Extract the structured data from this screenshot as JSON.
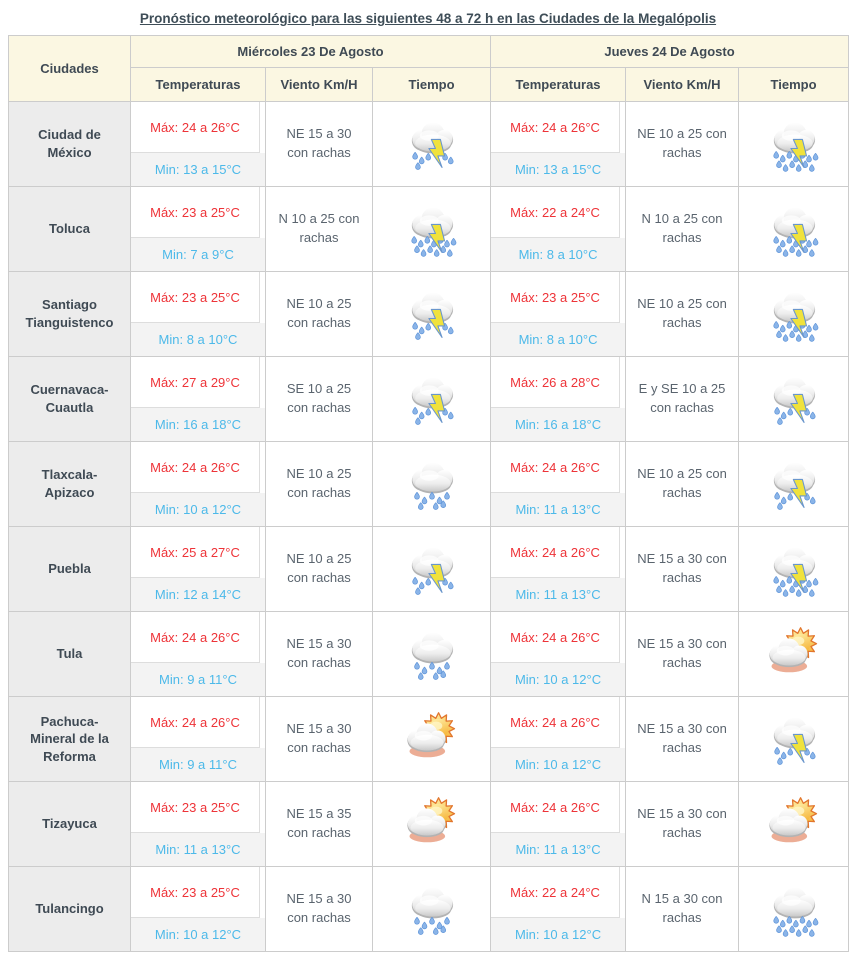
{
  "title": "Pronóstico meteorológico para las siguientes 48 a 72 h en las Ciudades de la Megalópolis",
  "colors": {
    "title": "#3e4d57",
    "dark_text": "#3f4a54",
    "header_bg": "#fbf7e2",
    "city_bg": "#ececec",
    "border": "#cccccc",
    "max_temp": "#ee3338",
    "min_temp": "#4cb9e9",
    "wind_text": "#5a646e",
    "sun_orange": "#e2762d",
    "bolt_yellow": "#f0e23c",
    "rain_blue": "#5d93d8"
  },
  "table": {
    "city_header": "Ciudades",
    "days": [
      {
        "label": "Miércoles 23 De Agosto",
        "cols": [
          "Temperaturas",
          "Viento Km/H",
          "Tiempo"
        ]
      },
      {
        "label": "Jueves 24 De Agosto",
        "cols": [
          "Temperaturas",
          "Viento Km/H",
          "Tiempo"
        ]
      }
    ],
    "rows": [
      {
        "city": "Ciudad de México",
        "wed": {
          "max": "Máx: 24 a 26°C",
          "min": "Min: 13 a 15°C",
          "wind": "NE 15 a 30 con rachas",
          "icon": "storm"
        },
        "thu": {
          "max": "Máx: 24 a 26°C",
          "min": "Min: 13 a 15°C",
          "wind": "NE 10 a 25 con rachas",
          "icon": "storm-heavy"
        }
      },
      {
        "city": "Toluca",
        "wed": {
          "max": "Máx: 23 a 25°C",
          "min": "Min: 7 a 9°C",
          "wind": "N 10 a 25 con rachas",
          "icon": "storm-heavy"
        },
        "thu": {
          "max": "Máx: 22 a 24°C",
          "min": "Min: 8 a 10°C",
          "wind": "N 10 a 25 con rachas",
          "icon": "storm-heavy"
        }
      },
      {
        "city": "Santiago Tianguistenco",
        "wed": {
          "max": "Máx: 23 a 25°C",
          "min": "Min: 8 a 10°C",
          "wind": "NE 10 a 25 con rachas",
          "icon": "storm"
        },
        "thu": {
          "max": "Máx: 23 a 25°C",
          "min": "Min: 8 a 10°C",
          "wind": "NE 10 a 25 con rachas",
          "icon": "storm-heavy"
        }
      },
      {
        "city": "Cuernavaca-Cuautla",
        "wed": {
          "max": "Máx: 27 a 29°C",
          "min": "Min: 16 a 18°C",
          "wind": "SE 10 a 25 con rachas",
          "icon": "storm"
        },
        "thu": {
          "max": "Máx: 26 a 28°C",
          "min": "Min: 16 a 18°C",
          "wind": "E y SE 10 a 25 con rachas",
          "icon": "storm"
        }
      },
      {
        "city": "Tlaxcala-Apizaco",
        "wed": {
          "max": "Máx: 24 a 26°C",
          "min": "Min: 10 a 12°C",
          "wind": "NE 10 a 25 con rachas",
          "icon": "rain"
        },
        "thu": {
          "max": "Máx: 24 a 26°C",
          "min": "Min: 11 a 13°C",
          "wind": "NE 10 a 25 con rachas",
          "icon": "storm"
        }
      },
      {
        "city": "Puebla",
        "wed": {
          "max": "Máx: 25 a 27°C",
          "min": "Min: 12 a 14°C",
          "wind": "NE 10 a 25 con rachas",
          "icon": "storm"
        },
        "thu": {
          "max": "Máx: 24 a 26°C",
          "min": "Min: 11 a 13°C",
          "wind": "NE 15 a 30 con rachas",
          "icon": "storm-heavy"
        }
      },
      {
        "city": "Tula",
        "wed": {
          "max": "Máx: 24 a 26°C",
          "min": "Min: 9 a 11°C",
          "wind": "NE 15 a 30 con rachas",
          "icon": "rain"
        },
        "thu": {
          "max": "Máx: 24 a 26°C",
          "min": "Min: 10 a 12°C",
          "wind": "NE 15 a 30 con rachas",
          "icon": "sun-cloud"
        }
      },
      {
        "city": "Pachuca- Mineral de la Reforma",
        "wed": {
          "max": "Máx: 24 a 26°C",
          "min": "Min: 9 a 11°C",
          "wind": "NE 15 a 30 con rachas",
          "icon": "sun-cloud"
        },
        "thu": {
          "max": "Máx: 24 a 26°C",
          "min": "Min: 10 a 12°C",
          "wind": "NE 15 a 30 con rachas",
          "icon": "storm"
        }
      },
      {
        "city": "Tizayuca",
        "wed": {
          "max": "Máx: 23 a 25°C",
          "min": "Min: 11 a 13°C",
          "wind": "NE 15 a 35 con rachas",
          "icon": "sun-cloud"
        },
        "thu": {
          "max": "Máx: 24 a 26°C",
          "min": "Min: 11 a 13°C",
          "wind": "NE 15 a 30 con rachas",
          "icon": "sun-cloud"
        }
      },
      {
        "city": "Tulancingo",
        "wed": {
          "max": "Máx: 23 a 25°C",
          "min": "Min: 10 a 12°C",
          "wind": "NE 15 a 30 con rachas",
          "icon": "rain"
        },
        "thu": {
          "max": "Máx: 22 a 24°C",
          "min": "Min: 10 a 12°C",
          "wind": "N 15 a 30 con rachas",
          "icon": "rain-heavy"
        }
      }
    ]
  }
}
